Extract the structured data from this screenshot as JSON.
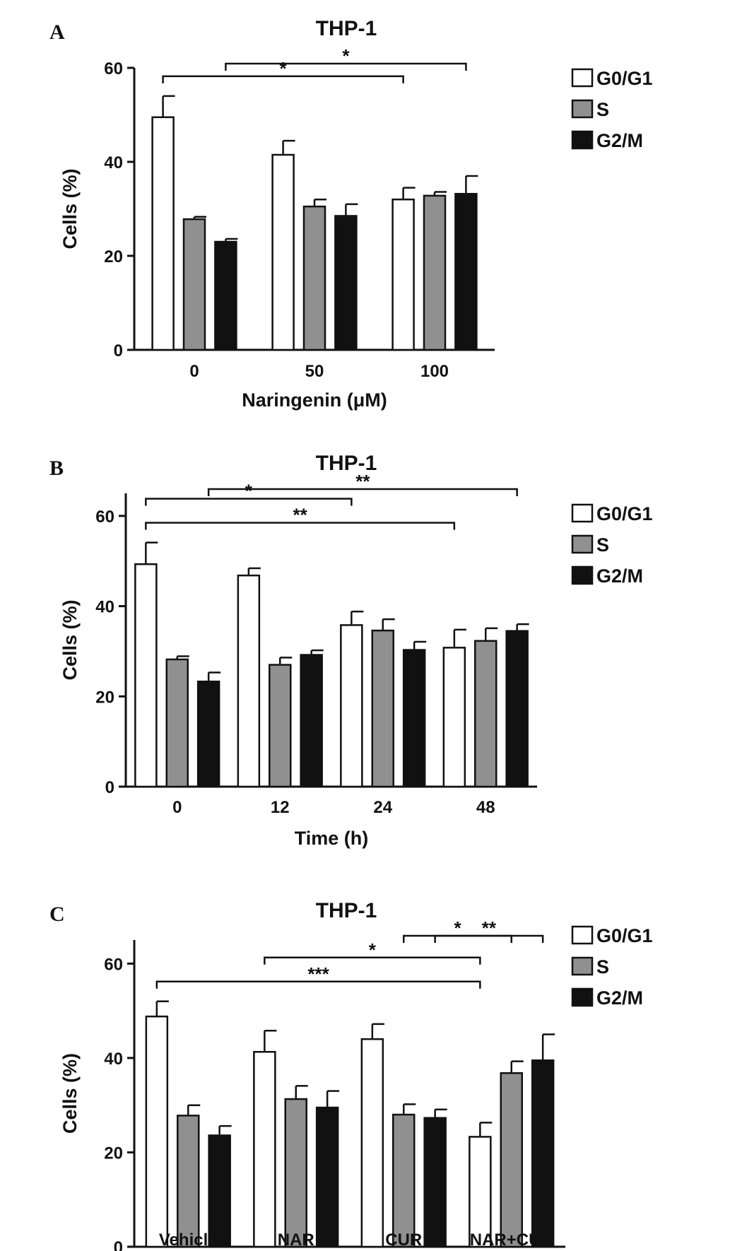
{
  "chart_data": [
    {
      "id": "A",
      "panel_label": "A",
      "type": "bar",
      "title": "THP-1",
      "xlabel": "Naringenin (μM)",
      "ylabel": "Cells (%)",
      "ylim": [
        0,
        60
      ],
      "yticks": [
        0,
        20,
        40,
        60
      ],
      "categories": [
        "0",
        "50",
        "100"
      ],
      "series": [
        {
          "name": "G0/G1",
          "values": [
            49.5,
            41.5,
            32.0
          ],
          "errors": [
            4.5,
            3.0,
            2.5
          ]
        },
        {
          "name": "S",
          "values": [
            27.8,
            30.5,
            32.8
          ],
          "errors": [
            0.5,
            1.5,
            0.8
          ]
        },
        {
          "name": "G2/M",
          "values": [
            23.0,
            28.5,
            33.2
          ],
          "errors": [
            0.6,
            2.5,
            3.8
          ]
        }
      ],
      "significance": [
        {
          "label": "*",
          "from_category": 0,
          "from_series": 0,
          "to_category": 2,
          "to_series": 0
        },
        {
          "label": "*",
          "from_category": 0,
          "from_series": 2,
          "to_category": 2,
          "to_series": 2
        }
      ],
      "legend": "top-right"
    },
    {
      "id": "B",
      "panel_label": "B",
      "type": "bar",
      "title": "THP-1",
      "xlabel": "Time (h)",
      "ylabel": "Cells (%)",
      "ylim": [
        0,
        65
      ],
      "yticks": [
        0,
        20,
        40,
        60
      ],
      "categories": [
        "0",
        "12",
        "24",
        "48"
      ],
      "series": [
        {
          "name": "G0/G1",
          "values": [
            49.3,
            46.8,
            35.8,
            30.8
          ],
          "errors": [
            4.8,
            1.6,
            3.0,
            4.0
          ]
        },
        {
          "name": "S",
          "values": [
            28.2,
            27.0,
            34.6,
            32.3
          ],
          "errors": [
            0.7,
            1.6,
            2.5,
            2.8
          ]
        },
        {
          "name": "G2/M",
          "values": [
            23.3,
            29.2,
            30.3,
            34.5
          ],
          "errors": [
            2.0,
            1.0,
            1.8,
            1.5
          ]
        }
      ],
      "significance": [
        {
          "label": "**",
          "from_category": 0,
          "from_series": 0,
          "to_category": 3,
          "to_series": 0
        },
        {
          "label": "*",
          "from_category": 0,
          "from_series": 0,
          "to_category": 2,
          "to_series": 0
        },
        {
          "label": "**",
          "from_category": 0,
          "from_series": 2,
          "to_category": 3,
          "to_series": 2
        }
      ],
      "legend": "top-right"
    },
    {
      "id": "C",
      "panel_label": "C",
      "type": "bar",
      "title": "THP-1",
      "xlabel": "",
      "ylabel": "Cells (%)",
      "ylim": [
        0,
        65
      ],
      "yticks": [
        0,
        20,
        40,
        60
      ],
      "categories": [
        "Vehicle",
        "NAR",
        "CUR",
        "NAR+CUR"
      ],
      "series": [
        {
          "name": "G0/G1",
          "values": [
            48.8,
            41.3,
            44.0,
            23.3
          ],
          "errors": [
            3.2,
            4.5,
            3.2,
            3.0
          ]
        },
        {
          "name": "S",
          "values": [
            27.8,
            31.3,
            28.0,
            36.8
          ],
          "errors": [
            2.2,
            2.8,
            2.2,
            2.5
          ]
        },
        {
          "name": "G2/M",
          "values": [
            23.6,
            29.5,
            27.3,
            39.5
          ],
          "errors": [
            2.0,
            3.5,
            1.8,
            5.5
          ]
        }
      ],
      "significance": [
        {
          "label": "***",
          "from_category": 0,
          "from_series": 0,
          "to_category": 3,
          "to_series": 0
        },
        {
          "label": "*",
          "from_category": 1,
          "from_series": 0,
          "to_category": 3,
          "to_series": 0
        },
        {
          "label": "**",
          "from_category": 2,
          "from_series": 2,
          "to_category": 3,
          "to_series": 2
        },
        {
          "label": "*",
          "from_category": 2,
          "from_series": 1,
          "to_category": 3,
          "to_series": 1
        }
      ],
      "legend": "top-right"
    }
  ],
  "style": {
    "series_colors": [
      "#ffffff",
      "#909090",
      "#111111"
    ],
    "stroke_color": "#111111"
  }
}
